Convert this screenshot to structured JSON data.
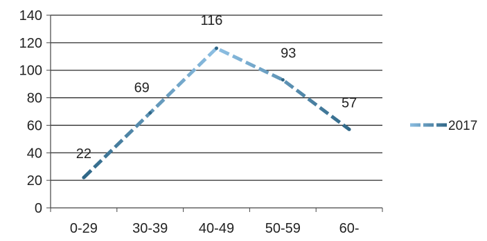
{
  "chart_data": {
    "type": "line",
    "categories": [
      "0-29",
      "30-39",
      "40-49",
      "50-59",
      "60-"
    ],
    "series": [
      {
        "name": "2017",
        "values": [
          22,
          69,
          116,
          93,
          57
        ],
        "data_labels": [
          "22",
          "69",
          "116",
          "93",
          "57"
        ]
      }
    ],
    "title": "",
    "xlabel": "",
    "ylabel": "",
    "ylim": [
      0,
      140
    ],
    "yticks": [
      0,
      20,
      40,
      60,
      80,
      100,
      120,
      140
    ],
    "ytick_labels": [
      "0",
      "20",
      "40",
      "60",
      "80",
      "100",
      "120",
      "140"
    ],
    "grid": "horizontal",
    "legend": "right",
    "line_style": "dashed",
    "colors": {
      "gradient_start": "#2e6686",
      "gradient_mid": "#8ec0e4",
      "gradient_end": "#2e6686",
      "gridline": "#2a2a2a",
      "axis": "#444444",
      "text": "#222222"
    }
  }
}
